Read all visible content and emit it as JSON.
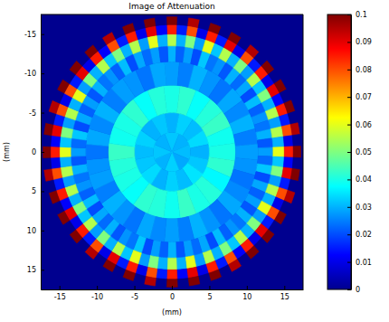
{
  "chart_data": {
    "type": "heatmap",
    "title": "Image of Attenuation",
    "xlabel": "(mm)",
    "ylabel": "(mm)",
    "xlim": [
      -17.5,
      17.5
    ],
    "ylim": [
      -17.5,
      17.5
    ],
    "xticks": [
      -15,
      -10,
      -5,
      0,
      5,
      10,
      15
    ],
    "yticks": [
      -15,
      -10,
      -5,
      0,
      5,
      10,
      15
    ],
    "rings": [
      {
        "r": [
          0,
          2.5
        ],
        "values": [
          0.032,
          0.03,
          0.031,
          0.029,
          0.033,
          0.03,
          0.032,
          0.03
        ]
      },
      {
        "r": [
          2.5,
          5
        ],
        "values": [
          0.03,
          0.033,
          0.031,
          0.034,
          0.03,
          0.032,
          0.035,
          0.031,
          0.033,
          0.03,
          0.034,
          0.032,
          0.031,
          0.033,
          0.03,
          0.032
        ]
      },
      {
        "r": [
          5,
          8.5
        ],
        "values": [
          0.04,
          0.042,
          0.038,
          0.041,
          0.043,
          0.039,
          0.04,
          0.042,
          0.037,
          0.041,
          0.04,
          0.043,
          0.039,
          0.041,
          0.042,
          0.038,
          0.04,
          0.041,
          0.043,
          0.039,
          0.04,
          0.042,
          0.038,
          0.041
        ]
      },
      {
        "r": [
          8.5,
          11.5
        ],
        "values": [
          0.028,
          0.025,
          0.03,
          0.027,
          0.024,
          0.029,
          0.026,
          0.03,
          0.025,
          0.028,
          0.027,
          0.024,
          0.026,
          0.029,
          0.024,
          0.027,
          0.03,
          0.025,
          0.028,
          0.026,
          0.029,
          0.024,
          0.027,
          0.03,
          0.025,
          0.028,
          0.027,
          0.024,
          0.029,
          0.026,
          0.03,
          0.025,
          0.028,
          0.027,
          0.024,
          0.029
        ]
      },
      {
        "r": [
          11.5,
          13.5
        ],
        "values": [
          0.03,
          0.022,
          0.028,
          0.02,
          0.032,
          0.024,
          0.027,
          0.021,
          0.03,
          0.023,
          0.029,
          0.02,
          0.031,
          0.022,
          0.027,
          0.024,
          0.03,
          0.021,
          0.028,
          0.023,
          0.032,
          0.02,
          0.029,
          0.022,
          0.028,
          0.021,
          0.03,
          0.024,
          0.027,
          0.022,
          0.031,
          0.02,
          0.029,
          0.023,
          0.028,
          0.021,
          0.03,
          0.022,
          0.028,
          0.02,
          0.032,
          0.024,
          0.027,
          0.021,
          0.03,
          0.023,
          0.029,
          0.02,
          0.031,
          0.022,
          0.027,
          0.024,
          0.03,
          0.021,
          0.028,
          0.023,
          0.032,
          0.02,
          0.029,
          0.022,
          0.028,
          0.021,
          0.03,
          0.024,
          0.027,
          0.022,
          0.031,
          0.02,
          0.029,
          0.023,
          0.028,
          0.021
        ]
      },
      {
        "r": [
          13.5,
          15
        ],
        "values": [
          0.055,
          0.03,
          0.05,
          0.028,
          0.06,
          0.032,
          0.055,
          0.03,
          0.05,
          0.028,
          0.055,
          0.032,
          0.05,
          0.03,
          0.055,
          0.028,
          0.055,
          0.03,
          0.06,
          0.032,
          0.05,
          0.028,
          0.055,
          0.03,
          0.06,
          0.028,
          0.05,
          0.03,
          0.055,
          0.032,
          0.05,
          0.03,
          0.055,
          0.028,
          0.06,
          0.03,
          0.055,
          0.03,
          0.05,
          0.028,
          0.06,
          0.032,
          0.055,
          0.03,
          0.05,
          0.028,
          0.055,
          0.032,
          0.05,
          0.03,
          0.055,
          0.028,
          0.055,
          0.03,
          0.06,
          0.032,
          0.05,
          0.028,
          0.055,
          0.03,
          0.06,
          0.028,
          0.05,
          0.03,
          0.055,
          0.032,
          0.05,
          0.03,
          0.055,
          0.028,
          0.06,
          0.03
        ]
      },
      {
        "r": [
          15,
          16.2
        ],
        "values": [
          0.085,
          0.015,
          0.08,
          0.01,
          0.085,
          0.015,
          0.09,
          0.01,
          0.08,
          0.015,
          0.085,
          0.01,
          0.09,
          0.012,
          0.085,
          0.015,
          0.08,
          0.01,
          0.085,
          0.012,
          0.09,
          0.015,
          0.08,
          0.01,
          0.08,
          0.015,
          0.09,
          0.01,
          0.085,
          0.012,
          0.08,
          0.015,
          0.085,
          0.01,
          0.09,
          0.012,
          0.085,
          0.015,
          0.08,
          0.01,
          0.085,
          0.015,
          0.09,
          0.01,
          0.08,
          0.015,
          0.085,
          0.01,
          0.09,
          0.012,
          0.085,
          0.015,
          0.08,
          0.01,
          0.085,
          0.012,
          0.09,
          0.015,
          0.08,
          0.01,
          0.08,
          0.015,
          0.09,
          0.01,
          0.085,
          0.012,
          0.08,
          0.015,
          0.085,
          0.01,
          0.09,
          0.012
        ]
      },
      {
        "r": [
          16.2,
          17.2
        ],
        "values": [
          0.1,
          0,
          0.095,
          0,
          0.1,
          0,
          0.1,
          0,
          0.095,
          0,
          0.1,
          0,
          0.1,
          0,
          0.1,
          0,
          0.095,
          0,
          0.1,
          0,
          0.1,
          0,
          0.095,
          0,
          0.1,
          0,
          0.1,
          0,
          0.1,
          0,
          0.095,
          0,
          0.1,
          0,
          0.1,
          0,
          0.1,
          0,
          0.095,
          0,
          0.1,
          0,
          0.1,
          0,
          0.095,
          0,
          0.1,
          0,
          0.1,
          0,
          0.1,
          0,
          0.095,
          0,
          0.1,
          0,
          0.1,
          0,
          0.095,
          0,
          0.1,
          0,
          0.1,
          0,
          0.1,
          0,
          0.095,
          0,
          0.1,
          0,
          0.1,
          0
        ]
      }
    ],
    "colorbar": {
      "range": [
        0,
        0.1
      ],
      "ticks": [
        0,
        0.01,
        0.02,
        0.03,
        0.04,
        0.05,
        0.06,
        0.07,
        0.08,
        0.09,
        0.1
      ]
    }
  }
}
